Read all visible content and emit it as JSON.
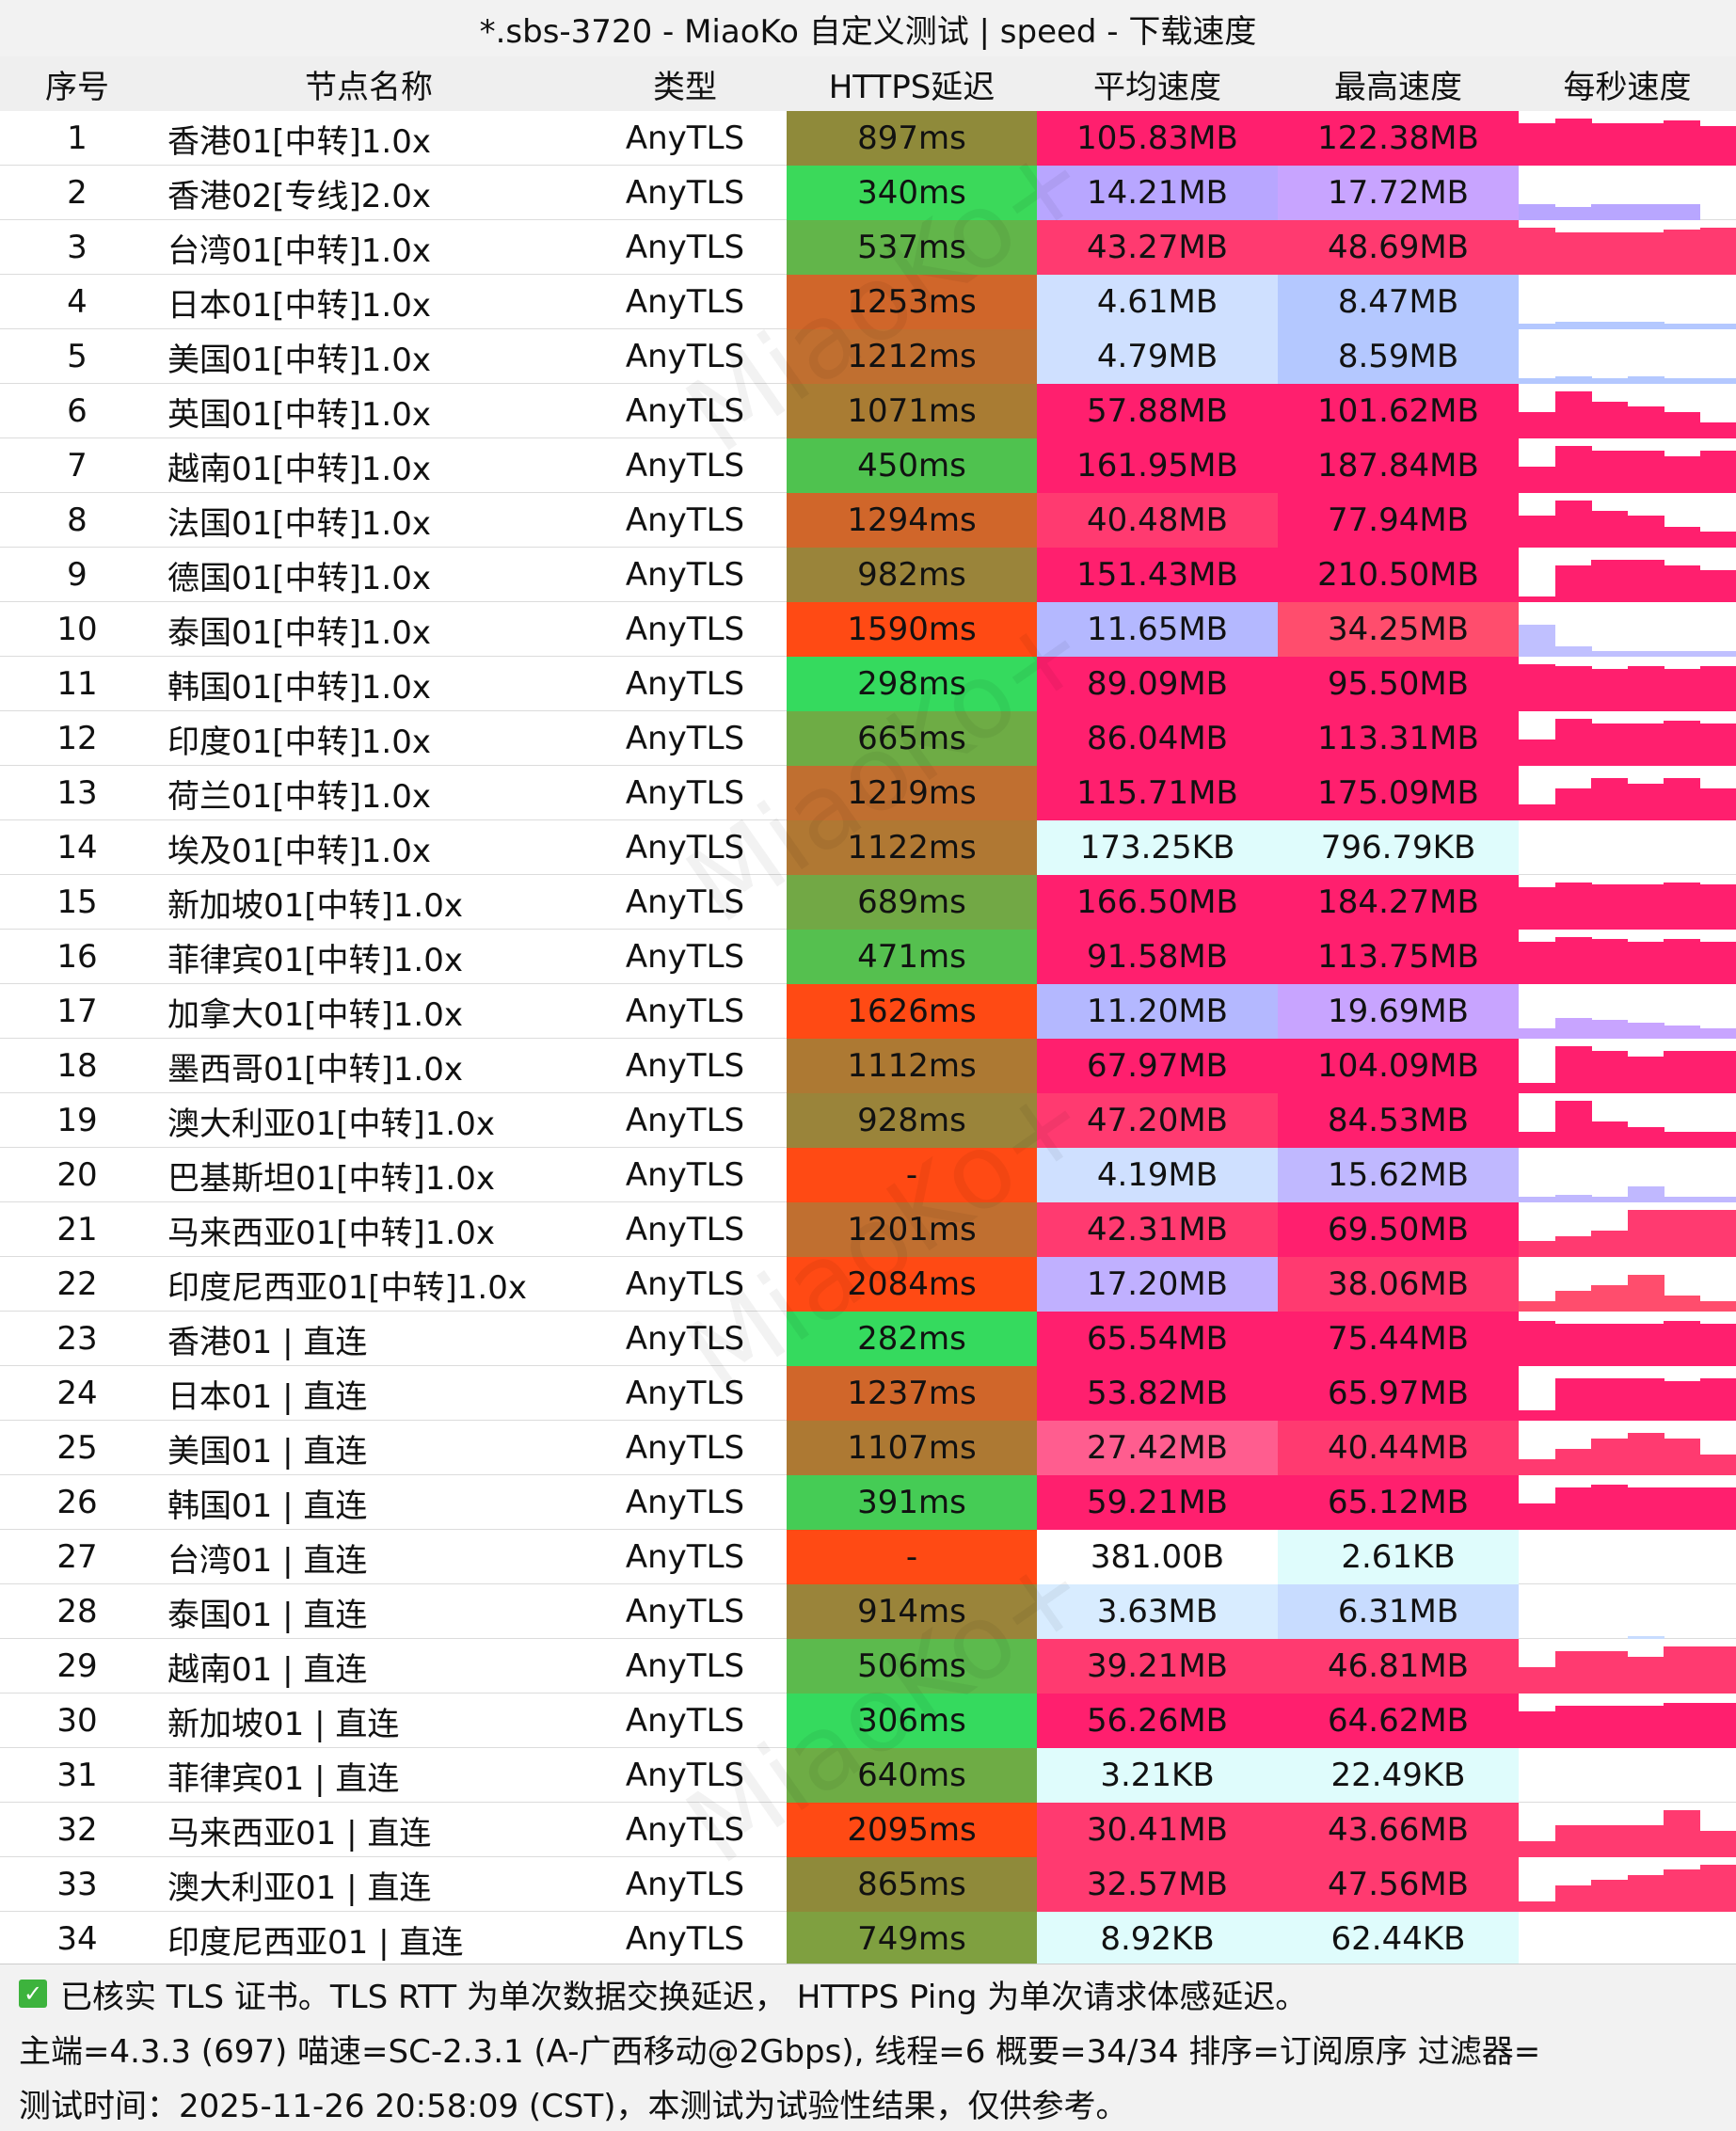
{
  "title": "*.sbs-3720 - MiaoKo 自定义测试 | speed - 下载速度",
  "watermark": "MiaoKo+",
  "headers": [
    "序号",
    "节点名称",
    "类型",
    "HTTPS延迟",
    "平均速度",
    "最高速度",
    "每秒速度"
  ],
  "rows": [
    {
      "idx": "1",
      "name": "香港01[中转]1.0x",
      "type": "AnyTLS",
      "latency": "897ms",
      "avg": "105.83MB",
      "max": "122.38MB",
      "lat_color": "#8f8a3a",
      "avg_color": "#ff1f6e",
      "max_color": "#ff1f6e",
      "speeds": [
        0.8,
        0.9,
        0.8,
        0.8,
        0.85,
        0.75
      ],
      "spd_color": "#ff1f6e"
    },
    {
      "idx": "2",
      "name": "香港02[专线]2.0x",
      "type": "AnyTLS",
      "latency": "340ms",
      "avg": "14.21MB",
      "max": "17.72MB",
      "lat_color": "#3bd95a",
      "avg_color": "#b8a6ff",
      "max_color": "#c8a4ff",
      "speeds": [
        0.3,
        0.25,
        0.3,
        0.3,
        0.3,
        0.0
      ],
      "spd_color": "#b8a6ff"
    },
    {
      "idx": "3",
      "name": "台湾01[中转]1.0x",
      "type": "AnyTLS",
      "latency": "537ms",
      "avg": "43.27MB",
      "max": "48.69MB",
      "lat_color": "#62b54a",
      "avg_color": "#ff3a70",
      "max_color": "#ff3a70",
      "speeds": [
        0.9,
        0.8,
        0.8,
        0.8,
        0.85,
        0.9
      ],
      "spd_color": "#ff3a70"
    },
    {
      "idx": "4",
      "name": "日本01[中转]1.0x",
      "type": "AnyTLS",
      "latency": "1253ms",
      "avg": "4.61MB",
      "max": "8.47MB",
      "lat_color": "#d0662a",
      "avg_color": "#cfe0ff",
      "max_color": "#b4c8ff",
      "speeds": [
        0.1,
        0.15,
        0.15,
        0.15,
        0.1,
        0.1
      ],
      "spd_color": "#b4c8ff"
    },
    {
      "idx": "5",
      "name": "美国01[中转]1.0x",
      "type": "AnyTLS",
      "latency": "1212ms",
      "avg": "4.79MB",
      "max": "8.59MB",
      "lat_color": "#c06f30",
      "avg_color": "#cfe0ff",
      "max_color": "#b4c8ff",
      "speeds": [
        0.1,
        0.15,
        0.1,
        0.15,
        0.1,
        0.1
      ],
      "spd_color": "#b4c8ff"
    },
    {
      "idx": "6",
      "name": "英国01[中转]1.0x",
      "type": "AnyTLS",
      "latency": "1071ms",
      "avg": "57.88MB",
      "max": "101.62MB",
      "lat_color": "#a97c33",
      "avg_color": "#ff1f6e",
      "max_color": "#ff1f6e",
      "speeds": [
        0.5,
        0.9,
        0.7,
        0.6,
        0.5,
        0.3
      ],
      "spd_color": "#ff1f6e"
    },
    {
      "idx": "7",
      "name": "越南01[中转]1.0x",
      "type": "AnyTLS",
      "latency": "450ms",
      "avg": "161.95MB",
      "max": "187.84MB",
      "lat_color": "#4fc24f",
      "avg_color": "#ff1f6e",
      "max_color": "#ff1f6e",
      "speeds": [
        0.5,
        0.9,
        0.8,
        0.8,
        0.7,
        0.8
      ],
      "spd_color": "#ff1f6e"
    },
    {
      "idx": "8",
      "name": "法国01[中转]1.0x",
      "type": "AnyTLS",
      "latency": "1294ms",
      "avg": "40.48MB",
      "max": "77.94MB",
      "lat_color": "#d0662a",
      "avg_color": "#ff3a70",
      "max_color": "#ff1f6e",
      "speeds": [
        0.6,
        0.9,
        0.7,
        0.6,
        0.4,
        0.3
      ],
      "spd_color": "#ff1f6e"
    },
    {
      "idx": "9",
      "name": "德国01[中转]1.0x",
      "type": "AnyTLS",
      "latency": "982ms",
      "avg": "151.43MB",
      "max": "210.50MB",
      "lat_color": "#9a843a",
      "avg_color": "#ff1f6e",
      "max_color": "#ff1f6e",
      "speeds": [
        0.1,
        0.7,
        0.8,
        0.8,
        0.7,
        0.6
      ],
      "spd_color": "#ff1f6e"
    },
    {
      "idx": "10",
      "name": "泰国01[中转]1.0x",
      "type": "AnyTLS",
      "latency": "1590ms",
      "avg": "11.65MB",
      "max": "34.25MB",
      "lat_color": "#ff4a14",
      "avg_color": "#b4b8ff",
      "max_color": "#ff4d6d",
      "speeds": [
        0.6,
        0.2,
        0.1,
        0.1,
        0.1,
        0.1
      ],
      "spd_color": "#c0c0ff"
    },
    {
      "idx": "11",
      "name": "韩国01[中转]1.0x",
      "type": "AnyTLS",
      "latency": "298ms",
      "avg": "89.09MB",
      "max": "95.50MB",
      "lat_color": "#35da5e",
      "avg_color": "#ff1f6e",
      "max_color": "#ff1f6e",
      "speeds": [
        0.9,
        0.85,
        0.8,
        0.85,
        0.8,
        0.85
      ],
      "spd_color": "#ff1f6e"
    },
    {
      "idx": "12",
      "name": "印度01[中转]1.0x",
      "type": "AnyTLS",
      "latency": "665ms",
      "avg": "86.04MB",
      "max": "113.31MB",
      "lat_color": "#6eac45",
      "avg_color": "#ff1f6e",
      "max_color": "#ff1f6e",
      "speeds": [
        0.5,
        0.9,
        0.8,
        0.8,
        0.85,
        0.8
      ],
      "spd_color": "#ff1f6e"
    },
    {
      "idx": "13",
      "name": "荷兰01[中转]1.0x",
      "type": "AnyTLS",
      "latency": "1219ms",
      "avg": "115.71MB",
      "max": "175.09MB",
      "lat_color": "#c06f30",
      "avg_color": "#ff1f6e",
      "max_color": "#ff1f6e",
      "speeds": [
        0.3,
        0.6,
        0.8,
        0.7,
        0.8,
        0.6
      ],
      "spd_color": "#ff1f6e"
    },
    {
      "idx": "14",
      "name": "埃及01[中转]1.0x",
      "type": "AnyTLS",
      "latency": "1122ms",
      "avg": "173.25KB",
      "max": "796.79KB",
      "lat_color": "#b07833",
      "avg_color": "#dffcfc",
      "max_color": "#dffcfc",
      "speeds": [
        0,
        0,
        0,
        0,
        0,
        0
      ],
      "spd_color": "#dffcfc"
    },
    {
      "idx": "15",
      "name": "新加坡01[中转]1.0x",
      "type": "AnyTLS",
      "latency": "689ms",
      "avg": "166.50MB",
      "max": "184.27MB",
      "lat_color": "#72a845",
      "avg_color": "#ff1f6e",
      "max_color": "#ff1f6e",
      "speeds": [
        0.8,
        0.9,
        0.85,
        0.85,
        0.9,
        0.85
      ],
      "spd_color": "#ff1f6e"
    },
    {
      "idx": "16",
      "name": "菲律宾01[中转]1.0x",
      "type": "AnyTLS",
      "latency": "471ms",
      "avg": "91.58MB",
      "max": "113.75MB",
      "lat_color": "#55c04f",
      "avg_color": "#ff1f6e",
      "max_color": "#ff1f6e",
      "speeds": [
        0.8,
        0.9,
        0.85,
        0.8,
        0.85,
        0.8
      ],
      "spd_color": "#ff1f6e"
    },
    {
      "idx": "17",
      "name": "加拿大01[中转]1.0x",
      "type": "AnyTLS",
      "latency": "1626ms",
      "avg": "11.20MB",
      "max": "19.69MB",
      "lat_color": "#ff4a14",
      "avg_color": "#b4b8ff",
      "max_color": "#c8a4ff",
      "speeds": [
        0.2,
        0.4,
        0.35,
        0.3,
        0.25,
        0.2
      ],
      "spd_color": "#c8a4ff"
    },
    {
      "idx": "18",
      "name": "墨西哥01[中转]1.0x",
      "type": "AnyTLS",
      "latency": "1112ms",
      "avg": "67.97MB",
      "max": "104.09MB",
      "lat_color": "#ad7933",
      "avg_color": "#ff1f6e",
      "max_color": "#ff1f6e",
      "speeds": [
        0.2,
        0.9,
        0.8,
        0.7,
        0.8,
        0.8
      ],
      "spd_color": "#ff1f6e"
    },
    {
      "idx": "19",
      "name": "澳大利亚01[中转]1.0x",
      "type": "AnyTLS",
      "latency": "928ms",
      "avg": "47.20MB",
      "max": "84.53MB",
      "lat_color": "#9a843a",
      "avg_color": "#ff3a70",
      "max_color": "#ff1f6e",
      "speeds": [
        0.3,
        0.9,
        0.5,
        0.4,
        0.3,
        0.3
      ],
      "spd_color": "#ff1f6e"
    },
    {
      "idx": "20",
      "name": "巴基斯坦01[中转]1.0x",
      "type": "AnyTLS",
      "latency": "-",
      "avg": "4.19MB",
      "max": "15.62MB",
      "lat_color": "#ff4a14",
      "avg_color": "#cfe0ff",
      "max_color": "#c0b8ff",
      "speeds": [
        0.1,
        0.15,
        0.1,
        0.3,
        0.1,
        0.1
      ],
      "spd_color": "#c0b8ff"
    },
    {
      "idx": "21",
      "name": "马来西亚01[中转]1.0x",
      "type": "AnyTLS",
      "latency": "1201ms",
      "avg": "42.31MB",
      "max": "69.50MB",
      "lat_color": "#c06f30",
      "avg_color": "#ff3a70",
      "max_color": "#ff1f6e",
      "speeds": [
        0.3,
        0.4,
        0.5,
        0.9,
        0.9,
        0.9
      ],
      "spd_color": "#ff3a70"
    },
    {
      "idx": "22",
      "name": "印度尼西亚01[中转]1.0x",
      "type": "AnyTLS",
      "latency": "2084ms",
      "avg": "17.20MB",
      "max": "38.06MB",
      "lat_color": "#ff4a14",
      "avg_color": "#c0b0ff",
      "max_color": "#ff3a70",
      "speeds": [
        0.2,
        0.4,
        0.5,
        0.7,
        0.3,
        0.2
      ],
      "spd_color": "#ff4d6d"
    },
    {
      "idx": "23",
      "name": "香港01 | 直连",
      "type": "AnyTLS",
      "latency": "282ms",
      "avg": "65.54MB",
      "max": "75.44MB",
      "lat_color": "#35da5e",
      "avg_color": "#ff1f6e",
      "max_color": "#ff1f6e",
      "speeds": [
        0.85,
        0.8,
        0.8,
        0.8,
        0.85,
        0.8
      ],
      "spd_color": "#ff1f6e"
    },
    {
      "idx": "24",
      "name": "日本01 | 直连",
      "type": "AnyTLS",
      "latency": "1237ms",
      "avg": "53.82MB",
      "max": "65.97MB",
      "lat_color": "#d0662a",
      "avg_color": "#ff1f6e",
      "max_color": "#ff1f6e",
      "speeds": [
        0.2,
        0.8,
        0.8,
        0.8,
        0.75,
        0.8
      ],
      "spd_color": "#ff1f6e"
    },
    {
      "idx": "25",
      "name": "美国01 | 直连",
      "type": "AnyTLS",
      "latency": "1107ms",
      "avg": "27.42MB",
      "max": "40.44MB",
      "lat_color": "#ad7933",
      "avg_color": "#ff5d8f",
      "max_color": "#ff3a70",
      "speeds": [
        0.3,
        0.5,
        0.7,
        0.8,
        0.7,
        0.4
      ],
      "spd_color": "#ff3a70"
    },
    {
      "idx": "26",
      "name": "韩国01 | 直连",
      "type": "AnyTLS",
      "latency": "391ms",
      "avg": "59.21MB",
      "max": "65.12MB",
      "lat_color": "#45cc55",
      "avg_color": "#ff1f6e",
      "max_color": "#ff1f6e",
      "speeds": [
        0.5,
        0.8,
        0.85,
        0.8,
        0.8,
        0.8
      ],
      "spd_color": "#ff1f6e"
    },
    {
      "idx": "27",
      "name": "台湾01 | 直连",
      "type": "AnyTLS",
      "latency": "-",
      "avg": "381.00B",
      "max": "2.61KB",
      "lat_color": "#ff4a14",
      "avg_color": "#ffffff",
      "max_color": "#dffcfc",
      "speeds": [
        0,
        0,
        0,
        0,
        0,
        0
      ],
      "spd_color": "#ffffff"
    },
    {
      "idx": "28",
      "name": "泰国01 | 直连",
      "type": "AnyTLS",
      "latency": "914ms",
      "avg": "3.63MB",
      "max": "6.31MB",
      "lat_color": "#9a843a",
      "avg_color": "#d8ecff",
      "max_color": "#c8dcff",
      "speeds": [
        0,
        0,
        0,
        0.05,
        0,
        0
      ],
      "spd_color": "#c8dcff"
    },
    {
      "idx": "29",
      "name": "越南01 | 直连",
      "type": "AnyTLS",
      "latency": "506ms",
      "avg": "39.21MB",
      "max": "46.81MB",
      "lat_color": "#5cba4d",
      "avg_color": "#ff3a70",
      "max_color": "#ff3a70",
      "speeds": [
        0.5,
        0.8,
        0.8,
        0.7,
        0.9,
        0.9
      ],
      "spd_color": "#ff3a70"
    },
    {
      "idx": "30",
      "name": "新加坡01 | 直连",
      "type": "AnyTLS",
      "latency": "306ms",
      "avg": "56.26MB",
      "max": "64.62MB",
      "lat_color": "#35da5e",
      "avg_color": "#ff1f6e",
      "max_color": "#ff1f6e",
      "speeds": [
        0.7,
        0.8,
        0.8,
        0.8,
        0.85,
        0.85
      ],
      "spd_color": "#ff1f6e"
    },
    {
      "idx": "31",
      "name": "菲律宾01 | 直连",
      "type": "AnyTLS",
      "latency": "640ms",
      "avg": "3.21KB",
      "max": "22.49KB",
      "lat_color": "#6eac45",
      "avg_color": "#dffcfc",
      "max_color": "#dffcfc",
      "speeds": [
        0,
        0,
        0,
        0,
        0,
        0
      ],
      "spd_color": "#dffcfc"
    },
    {
      "idx": "32",
      "name": "马来西亚01 | 直连",
      "type": "AnyTLS",
      "latency": "2095ms",
      "avg": "30.41MB",
      "max": "43.66MB",
      "lat_color": "#ff4a14",
      "avg_color": "#ff3a70",
      "max_color": "#ff3a70",
      "speeds": [
        0.3,
        0.6,
        0.6,
        0.6,
        0.9,
        0.5
      ],
      "spd_color": "#ff3a70"
    },
    {
      "idx": "33",
      "name": "澳大利亚01 | 直连",
      "type": "AnyTLS",
      "latency": "865ms",
      "avg": "32.57MB",
      "max": "47.56MB",
      "lat_color": "#8f8a3a",
      "avg_color": "#ff3a70",
      "max_color": "#ff3a70",
      "speeds": [
        0.2,
        0.5,
        0.6,
        0.7,
        0.8,
        0.9
      ],
      "spd_color": "#ff3a70"
    },
    {
      "idx": "34",
      "name": "印度尼西亚01 | 直连",
      "type": "AnyTLS",
      "latency": "749ms",
      "avg": "8.92KB",
      "max": "62.44KB",
      "lat_color": "#7fa040",
      "avg_color": "#dffcfc",
      "max_color": "#dffcfc",
      "speeds": [
        0,
        0,
        0,
        0,
        0,
        0
      ],
      "spd_color": "#dffcfc"
    }
  ],
  "footer": {
    "line1": "已核实 TLS 证书。TLS RTT 为单次数据交换延迟， HTTPS Ping 为单次请求体感延迟。",
    "line2": "主端=4.3.3 (697) 喵速=SC-2.3.1 (A-广西移动@2Gbps), 线程=6 概要=34/34 排序=订阅原序 过滤器=",
    "line3": "测试时间：2025-11-26 20:58:09 (CST)，本测试为试验性结果，仅供参考。"
  }
}
